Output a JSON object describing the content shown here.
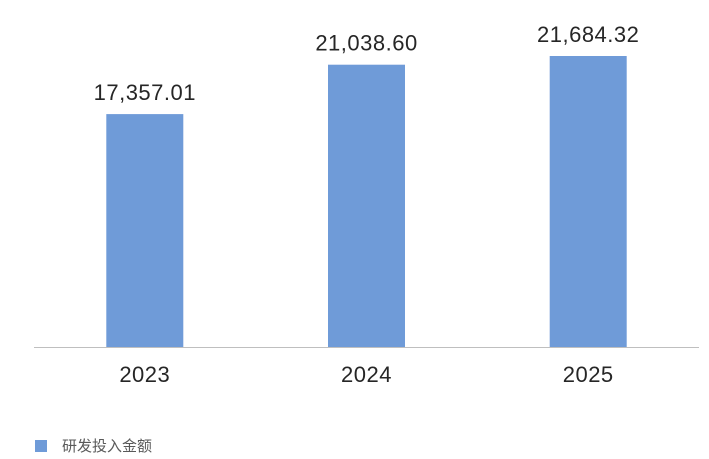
{
  "chart_data": {
    "type": "bar",
    "categories": [
      "2023",
      "2024",
      "2025"
    ],
    "series": [
      {
        "name": "研发投入金额",
        "values": [
          17357.01,
          21038.6,
          21684.32
        ],
        "labels": [
          "17,357.01",
          "21,038.60",
          "21,684.32"
        ],
        "color": "#6f9bd8"
      }
    ],
    "ylim": [
      0,
      25000
    ],
    "grid": false,
    "legend_position": "bottom-left"
  }
}
